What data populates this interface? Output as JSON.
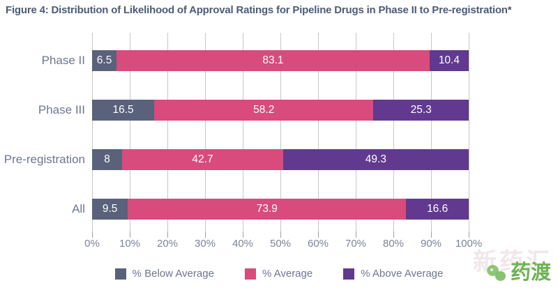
{
  "title": "Figure 4: Distribution of Likelihood of Approval Ratings for Pipeline Drugs in Phase II to Pre-registration*",
  "chart_data": {
    "type": "bar",
    "orientation": "horizontal",
    "stacked": true,
    "title": "Figure 4: Distribution of Likelihood of Approval Ratings for Pipeline Drugs in Phase II to Pre-registration*",
    "categories": [
      "Phase II",
      "Phase III",
      "Pre-registration",
      "All"
    ],
    "series": [
      {
        "name": "% Below Average",
        "color": "#59627a",
        "values": [
          6.5,
          16.5,
          8,
          9.5
        ]
      },
      {
        "name": "% Average",
        "color": "#d84b7c",
        "values": [
          83.1,
          58.2,
          42.7,
          73.9
        ]
      },
      {
        "name": "% Above Average",
        "color": "#61398f",
        "values": [
          10.4,
          25.3,
          49.3,
          16.6
        ]
      }
    ],
    "xlim": [
      0,
      100
    ],
    "x_ticks": [
      "0%",
      "10%",
      "20%",
      "30%",
      "40%",
      "50%",
      "60%",
      "70%",
      "80%",
      "90%",
      "100%"
    ],
    "grid": "vertical",
    "value_labels_shown": true,
    "legend_position": "bottom"
  },
  "colors": {
    "title_text": "#4d5a78",
    "category_text": "#6e7690",
    "axis_text": "#7d849b",
    "gridline": "#c7c7c7",
    "value_text": "#ffffff",
    "watermark_green": "#6cb353"
  },
  "watermark": {
    "logo_text": "药渡",
    "faint_text": "新药汇"
  }
}
